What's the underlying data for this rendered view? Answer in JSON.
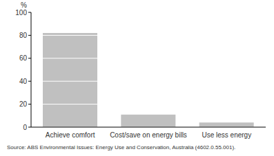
{
  "chart_data": {
    "type": "bar",
    "y_label": "%",
    "source": "Source: ABS Environmental Issues: Energy Use and Conservation, Australia (4602.0.55.001).",
    "categories": [
      "Achieve comfort",
      "Cost/save on energy bills",
      "Use less energy"
    ],
    "values": [
      82,
      11,
      4
    ],
    "color": "#c0c0c0",
    "ylim": [
      0,
      100
    ],
    "yticks": [
      0,
      20,
      40,
      60,
      80,
      100
    ],
    "grid": true
  }
}
